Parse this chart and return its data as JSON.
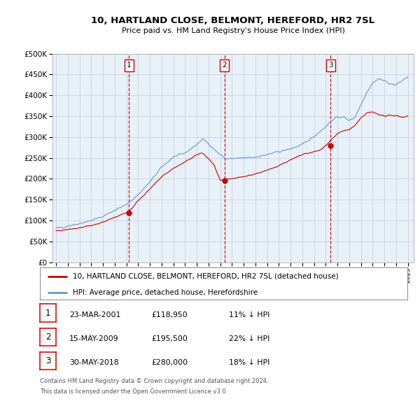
{
  "title": "10, HARTLAND CLOSE, BELMONT, HEREFORD, HR2 7SL",
  "subtitle": "Price paid vs. HM Land Registry's House Price Index (HPI)",
  "transactions": [
    {
      "num": 1,
      "date_str": "23-MAR-2001",
      "price": 118950,
      "pct": "11%",
      "direction": "↓",
      "x_year": 2001.22
    },
    {
      "num": 2,
      "date_str": "15-MAY-2009",
      "price": 195500,
      "pct": "22%",
      "direction": "↓",
      "x_year": 2009.37
    },
    {
      "num": 3,
      "date_str": "30-MAY-2018",
      "price": 280000,
      "pct": "18%",
      "direction": "↓",
      "x_year": 2018.41
    }
  ],
  "legend_line1": "10, HARTLAND CLOSE, BELMONT, HEREFORD, HR2 7SL (detached house)",
  "legend_line2": "HPI: Average price, detached house, Herefordshire",
  "footer_line1": "Contains HM Land Registry data © Crown copyright and database right 2024.",
  "footer_line2": "This data is licensed under the Open Government Licence v3.0.",
  "red_color": "#cc0000",
  "blue_color": "#6699cc",
  "bg_plot_color": "#e8f0f8",
  "grid_color": "#c8d4e0",
  "ylim": [
    0,
    500000
  ],
  "xlim_start": 1994.7,
  "xlim_end": 2025.5,
  "hpi_anchors_x": [
    1995,
    1995.5,
    1996,
    1997,
    1998,
    1999,
    2000,
    2001,
    2002,
    2003,
    2004,
    2005,
    2006,
    2007,
    2007.5,
    2008,
    2008.5,
    2009,
    2009.5,
    2010,
    2011,
    2012,
    2013,
    2014,
    2015,
    2016,
    2017,
    2018,
    2018.5,
    2019,
    2019.5,
    2020,
    2020.5,
    2021,
    2021.5,
    2022,
    2022.5,
    2023,
    2023.5,
    2024,
    2024.5,
    2025
  ],
  "hpi_anchors_y": [
    82000,
    83000,
    87000,
    93000,
    100000,
    110000,
    125000,
    138000,
    162000,
    192000,
    228000,
    252000,
    262000,
    282000,
    295000,
    285000,
    270000,
    258000,
    248000,
    248000,
    250000,
    252000,
    258000,
    265000,
    272000,
    282000,
    302000,
    325000,
    340000,
    348000,
    348000,
    340000,
    348000,
    378000,
    408000,
    430000,
    440000,
    435000,
    428000,
    425000,
    435000,
    445000
  ],
  "red_anchors_x": [
    1995,
    1995.5,
    1996,
    1997,
    1998,
    1999,
    2000,
    2001,
    2001.5,
    2002,
    2003,
    2004,
    2005,
    2006,
    2007,
    2007.5,
    2008,
    2008.5,
    2009,
    2009.5,
    2010,
    2011,
    2012,
    2013,
    2014,
    2015,
    2016,
    2017,
    2017.5,
    2018,
    2018.5,
    2019,
    2019.5,
    2020,
    2020.5,
    2021,
    2021.5,
    2022,
    2022.5,
    2023,
    2023.5,
    2024,
    2024.5,
    2025
  ],
  "red_anchors_y": [
    75000,
    76000,
    78000,
    83000,
    88000,
    96000,
    108000,
    118950,
    130000,
    148000,
    175000,
    205000,
    225000,
    240000,
    258000,
    262000,
    248000,
    232000,
    195500,
    198000,
    200000,
    205000,
    212000,
    220000,
    232000,
    245000,
    258000,
    265000,
    268000,
    280000,
    295000,
    308000,
    315000,
    318000,
    328000,
    345000,
    358000,
    360000,
    355000,
    350000,
    352000,
    352000,
    348000,
    350000
  ]
}
